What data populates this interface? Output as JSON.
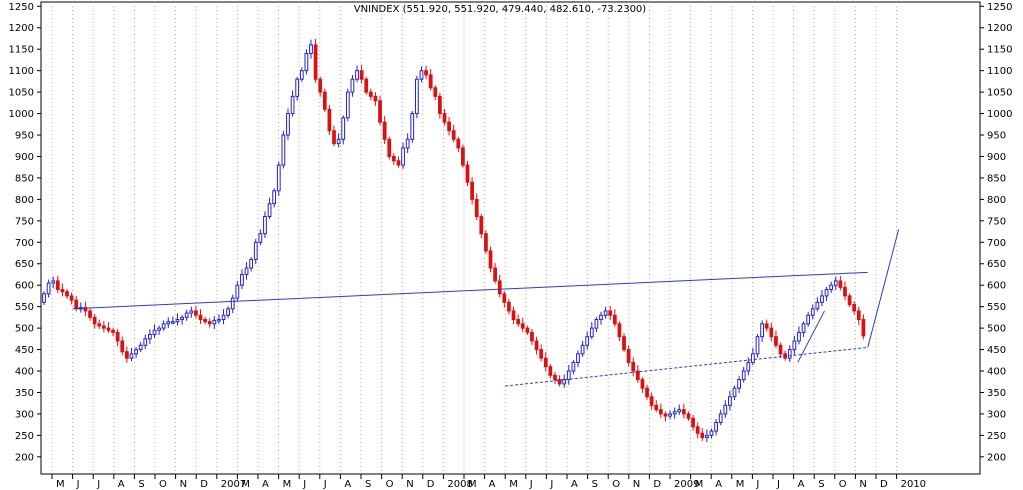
{
  "chart_data": {
    "type": "candlestick",
    "title": "VNINDEX (551.920, 551.920, 479.440, 482.610, -73.2300)",
    "ylim": [
      160,
      1260
    ],
    "y_ticks": [
      200,
      250,
      300,
      350,
      400,
      450,
      500,
      550,
      600,
      650,
      700,
      750,
      800,
      850,
      900,
      950,
      1000,
      1050,
      1100,
      1150,
      1200,
      1250
    ],
    "grid": "vertical-dotted",
    "x_labels": [
      "M",
      "J",
      "J",
      "A",
      "S",
      "O",
      "N",
      "D",
      "2007",
      "M",
      "A",
      "M",
      "J",
      "J",
      "A",
      "S",
      "O",
      "N",
      "D",
      "2008",
      "M",
      "A",
      "M",
      "J",
      "J",
      "A",
      "S",
      "O",
      "N",
      "D",
      "2009",
      "M",
      "A",
      "M",
      "J",
      "J",
      "A",
      "S",
      "O",
      "N",
      "D",
      "2010"
    ],
    "up_color": "#2222cc",
    "down_color": "#dd1111",
    "line_color": "#2a3ec8",
    "weekly_closes": [
      580,
      605,
      610,
      590,
      585,
      575,
      565,
      545,
      548,
      540,
      525,
      510,
      505,
      500,
      495,
      490,
      470,
      445,
      430,
      440,
      450,
      460,
      475,
      485,
      495,
      500,
      510,
      515,
      515,
      520,
      525,
      535,
      540,
      530,
      520,
      515,
      510,
      518,
      520,
      530,
      545,
      570,
      600,
      625,
      640,
      660,
      700,
      720,
      760,
      790,
      820,
      880,
      950,
      1000,
      1040,
      1080,
      1100,
      1140,
      1160,
      1080,
      1050,
      1010,
      960,
      930,
      940,
      990,
      1050,
      1080,
      1100,
      1080,
      1050,
      1040,
      1030,
      980,
      940,
      900,
      890,
      880,
      920,
      940,
      1000,
      1080,
      1100,
      1090,
      1060,
      1040,
      1000,
      980,
      960,
      940,
      920,
      880,
      840,
      800,
      760,
      720,
      680,
      640,
      610,
      580,
      560,
      540,
      520,
      510,
      500,
      490,
      470,
      450,
      430,
      410,
      390,
      380,
      370,
      380,
      400,
      420,
      440,
      460,
      480,
      500,
      520,
      530,
      540,
      530,
      510,
      480,
      450,
      420,
      400,
      380,
      360,
      340,
      320,
      310,
      300,
      295,
      300,
      305,
      310,
      300,
      290,
      270,
      255,
      245,
      250,
      260,
      280,
      300,
      320,
      340,
      360,
      380,
      400,
      420,
      440,
      480,
      510,
      500,
      480,
      460,
      440,
      430,
      450,
      470,
      490,
      510,
      530,
      545,
      560,
      575,
      590,
      600,
      610,
      595,
      575,
      555,
      540,
      520,
      482
    ],
    "weekly_opens": [
      560,
      580,
      605,
      610,
      590,
      585,
      575,
      565,
      545,
      548,
      540,
      525,
      510,
      505,
      500,
      495,
      490,
      470,
      445,
      430,
      440,
      450,
      460,
      475,
      485,
      495,
      500,
      510,
      515,
      515,
      520,
      525,
      535,
      540,
      530,
      520,
      515,
      510,
      518,
      520,
      530,
      545,
      570,
      600,
      625,
      640,
      660,
      700,
      720,
      760,
      790,
      820,
      880,
      950,
      1000,
      1040,
      1080,
      1100,
      1140,
      1160,
      1080,
      1050,
      1010,
      960,
      930,
      940,
      990,
      1050,
      1080,
      1100,
      1080,
      1050,
      1040,
      1030,
      980,
      940,
      900,
      890,
      880,
      920,
      940,
      1000,
      1080,
      1100,
      1090,
      1060,
      1040,
      1000,
      980,
      960,
      940,
      920,
      880,
      840,
      800,
      760,
      720,
      680,
      640,
      610,
      580,
      560,
      540,
      520,
      510,
      500,
      490,
      470,
      450,
      430,
      410,
      390,
      380,
      370,
      380,
      400,
      420,
      440,
      460,
      480,
      500,
      520,
      530,
      540,
      530,
      510,
      480,
      450,
      420,
      400,
      380,
      360,
      340,
      320,
      310,
      300,
      295,
      300,
      305,
      310,
      300,
      290,
      270,
      255,
      245,
      250,
      260,
      280,
      300,
      320,
      340,
      360,
      380,
      400,
      420,
      440,
      480,
      510,
      500,
      480,
      460,
      440,
      430,
      450,
      470,
      490,
      510,
      530,
      545,
      560,
      575,
      590,
      600,
      610,
      595,
      575,
      555,
      540,
      520,
      552
    ],
    "trendlines": [
      {
        "style": "solid",
        "from": [
          1.0,
          545
        ],
        "to": [
          39.6,
          630
        ]
      },
      {
        "style": "dotted",
        "from": [
          22.0,
          365
        ],
        "to": [
          39.6,
          455
        ]
      },
      {
        "style": "solid",
        "from": [
          39.6,
          455
        ],
        "to": [
          41.1,
          730
        ]
      },
      {
        "style": "solid",
        "from": [
          36.2,
          420
        ],
        "to": [
          37.5,
          540
        ]
      }
    ]
  }
}
